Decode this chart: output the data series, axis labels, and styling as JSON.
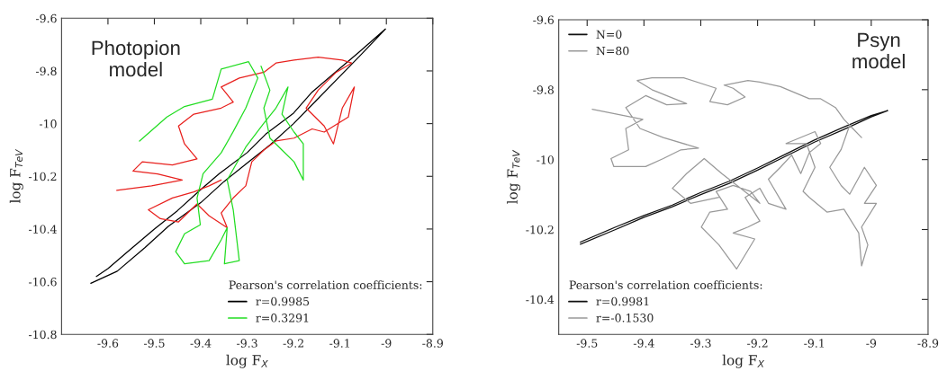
{
  "chart_data": [
    {
      "type": "line",
      "xlabel": "log F$_{X}$",
      "ylabel": "log F$_{TeV}$",
      "legend_title": "Pearson's correlation coefficients:",
      "legend": "bottom right",
      "annotations": [
        "Photopion\nmodel"
      ],
      "xlim": [
        -9.7,
        -8.9
      ],
      "ylim": [
        -10.8,
        -9.6
      ],
      "xticks": [
        -9.6,
        -9.5,
        -9.4,
        -9.3,
        -9.2,
        -9.1,
        -9,
        -8.9
      ],
      "yticks": [
        -10.8,
        -10.6,
        -10.4,
        -10.2,
        -10,
        -9.8,
        -9.6
      ],
      "series": [
        {
          "name": "r=0.9985",
          "color": "#000000",
          "x": [
            -9.637,
            -9.58,
            -9.52,
            -9.47,
            -9.4,
            -9.35,
            -9.3,
            -9.25,
            -9.2,
            -9.15,
            -9.1,
            -9.05,
            -9.002,
            -9.06,
            -9.1,
            -9.16,
            -9.2,
            -9.26,
            -9.3,
            -9.36,
            -9.4,
            -9.45,
            -9.5,
            -9.56,
            -9.6,
            -9.625
          ],
          "values": [
            -10.606,
            -10.56,
            -10.47,
            -10.39,
            -10.3,
            -10.22,
            -10.15,
            -10.08,
            -10.0,
            -9.91,
            -9.82,
            -9.73,
            -9.641,
            -9.73,
            -9.79,
            -9.88,
            -9.96,
            -10.04,
            -10.11,
            -10.19,
            -10.25,
            -10.33,
            -10.4,
            -10.49,
            -10.55,
            -10.58
          ]
        },
        {
          "color": "#e8211e",
          "x": [
            -9.581,
            -9.506,
            -9.44,
            -9.493,
            -9.546,
            -9.526,
            -9.461,
            -9.408,
            -9.435,
            -9.448,
            -9.415,
            -9.356,
            -9.33,
            -9.356,
            -9.317,
            -9.264,
            -9.238,
            -9.199,
            -9.147,
            -9.095,
            -9.075,
            -9.108,
            -9.147,
            -9.173,
            -9.134,
            -9.114,
            -9.095,
            -9.069,
            -9.082,
            -9.134,
            -9.16,
            -9.199,
            -9.238,
            -9.264,
            -9.29,
            -9.303,
            -9.33,
            -9.356,
            -9.343,
            -9.382,
            -9.408,
            -9.448,
            -9.487,
            -9.513,
            -9.461,
            -9.415,
            -9.382,
            -9.356
          ],
          "values": [
            -10.253,
            -10.236,
            -10.214,
            -10.191,
            -10.18,
            -10.145,
            -10.157,
            -10.134,
            -10.077,
            -10.009,
            -9.964,
            -9.941,
            -9.918,
            -9.861,
            -9.827,
            -9.805,
            -9.77,
            -9.759,
            -9.748,
            -9.759,
            -9.77,
            -9.805,
            -9.873,
            -9.941,
            -10.009,
            -10.077,
            -9.941,
            -9.861,
            -9.975,
            -10.032,
            -10.02,
            -10.055,
            -10.066,
            -10.1,
            -10.145,
            -10.236,
            -10.282,
            -10.339,
            -10.395,
            -10.35,
            -10.305,
            -10.373,
            -10.361,
            -10.327,
            -10.282,
            -10.259,
            -10.236,
            -10.214
          ]
        },
        {
          "name": "r=0.3291",
          "color": "#22dd22",
          "x": [
            -9.532,
            -9.473,
            -9.435,
            -9.375,
            -9.356,
            -9.297,
            -9.277,
            -9.303,
            -9.33,
            -9.356,
            -9.395,
            -9.408,
            -9.401,
            -9.435,
            -9.454,
            -9.435,
            -9.382,
            -9.356,
            -9.343,
            -9.349,
            -9.317,
            -9.33,
            -9.343,
            -9.303,
            -9.264,
            -9.238,
            -9.212,
            -9.225,
            -9.199,
            -9.179,
            -9.179,
            -9.199,
            -9.225,
            -9.251,
            -9.264,
            -9.251,
            -9.27
          ],
          "values": [
            -10.066,
            -9.975,
            -9.935,
            -9.907,
            -9.793,
            -9.765,
            -9.827,
            -9.941,
            -10.03,
            -10.111,
            -10.19,
            -10.282,
            -10.384,
            -10.418,
            -10.486,
            -10.532,
            -10.52,
            -10.441,
            -10.395,
            -10.532,
            -10.52,
            -10.327,
            -10.214,
            -10.089,
            -9.998,
            -9.941,
            -9.861,
            -9.964,
            -10.032,
            -10.077,
            -10.214,
            -10.145,
            -10.1,
            -10.055,
            -9.941,
            -9.873,
            -9.782
          ]
        }
      ]
    },
    {
      "type": "line",
      "xlabel": "log F$_{X}$",
      "ylabel": "log F$_{TeV}$",
      "legend_title": "Pearson's correlation coefficients:",
      "legend": "bottom left",
      "annotations": [
        "Psyn\nmodel",
        "N=0",
        "N=80"
      ],
      "xlim": [
        -9.55,
        -8.9
      ],
      "ylim": [
        -10.5,
        -9.6
      ],
      "xticks": [
        -9.5,
        -9.4,
        -9.3,
        -9.2,
        -9.1,
        -9,
        -8.9
      ],
      "yticks": [
        -10.4,
        -10.2,
        -10,
        -9.8,
        -9.6
      ],
      "series": [
        {
          "name": "r=0.9981",
          "color": "#111111",
          "x": [
            -9.512,
            -9.45,
            -9.4,
            -9.35,
            -9.3,
            -9.25,
            -9.2,
            -9.15,
            -9.1,
            -9.05,
            -9.0,
            -8.971,
            -9.0,
            -9.05,
            -9.1,
            -9.15,
            -9.2,
            -9.25,
            -9.3,
            -9.35,
            -9.4,
            -9.45,
            -9.512
          ],
          "values": [
            -10.242,
            -10.2,
            -10.165,
            -10.135,
            -10.1,
            -10.068,
            -10.03,
            -9.99,
            -9.95,
            -9.915,
            -9.878,
            -9.86,
            -9.874,
            -9.908,
            -9.944,
            -9.984,
            -10.024,
            -10.062,
            -10.094,
            -10.13,
            -10.16,
            -10.193,
            -10.236
          ]
        },
        {
          "name": "r=-0.1530",
          "color": "#999999",
          "x": [
            -9.491,
            -9.402,
            -9.432,
            -9.427,
            -9.458,
            -9.453,
            -9.397,
            -9.366,
            -9.335,
            -9.304,
            -9.366,
            -9.407,
            -9.432,
            -9.397,
            -9.36,
            -9.325,
            -9.386,
            -9.412,
            -9.386,
            -9.33,
            -9.273,
            -9.284,
            -9.253,
            -9.222,
            -9.243,
            -9.259,
            -9.217,
            -9.196,
            -9.16,
            -9.109,
            -9.089,
            -9.063,
            -9.048,
            -9.017,
            -9.038,
            -9.053,
            -9.073,
            -9.053,
            -9.038,
            -9.012,
            -8.991,
            -9.012,
            -8.991,
            -9.017,
            -9.006,
            -9.017,
            -9.022,
            -9.048,
            -9.078,
            -9.109,
            -9.12,
            -9.099,
            -9.114,
            -9.15,
            -9.099,
            -9.089,
            -9.109,
            -9.124,
            -9.14,
            -9.16,
            -9.181,
            -9.15,
            -9.181,
            -9.196,
            -9.222,
            -9.196,
            -9.217,
            -9.243,
            -9.205,
            -9.237,
            -9.268,
            -9.299,
            -9.284,
            -9.253,
            -9.273,
            -9.243,
            -9.212,
            -9.196,
            -9.263,
            -9.294,
            -9.325,
            -9.35,
            -9.318,
            -9.268
          ],
          "values": [
            -9.856,
            -9.885,
            -9.911,
            -9.972,
            -9.997,
            -10.02,
            -10.02,
            -9.997,
            -9.972,
            -9.967,
            -9.937,
            -9.911,
            -9.851,
            -9.817,
            -9.843,
            -9.84,
            -9.8,
            -9.774,
            -9.766,
            -9.766,
            -9.796,
            -9.834,
            -9.843,
            -9.821,
            -9.796,
            -9.787,
            -9.774,
            -9.778,
            -9.791,
            -9.826,
            -9.826,
            -9.851,
            -9.885,
            -9.937,
            -9.902,
            -9.971,
            -10.022,
            -10.074,
            -10.099,
            -10.022,
            -10.074,
            -10.125,
            -10.125,
            -10.193,
            -10.244,
            -10.304,
            -10.21,
            -10.142,
            -10.15,
            -10.108,
            -10.091,
            -10.022,
            -9.954,
            -9.954,
            -9.92,
            -9.954,
            -9.98,
            -10.04,
            -9.987,
            -10.022,
            -10.056,
            -10.142,
            -10.125,
            -10.082,
            -10.108,
            -10.176,
            -10.193,
            -10.21,
            -10.227,
            -10.313,
            -10.244,
            -10.193,
            -10.15,
            -10.142,
            -10.091,
            -10.074,
            -10.091,
            -10.125,
            -10.04,
            -9.997,
            -10.04,
            -10.082,
            -10.125,
            -10.108
          ]
        }
      ]
    }
  ]
}
